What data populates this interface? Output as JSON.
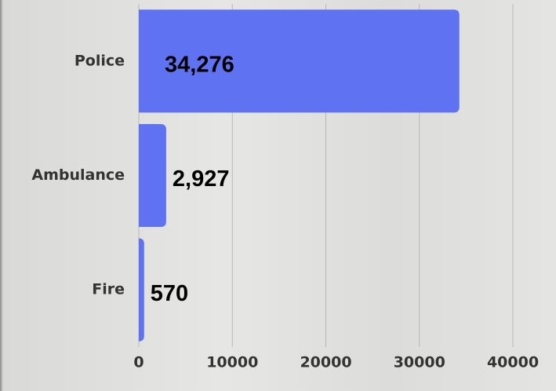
{
  "chart_data": {
    "type": "bar",
    "orientation": "horizontal",
    "categories": [
      "Police",
      "Ambulance",
      "Fire"
    ],
    "values": [
      34276,
      2927,
      570
    ],
    "value_labels": [
      "34,276",
      "2,927",
      "570"
    ],
    "color": "#5f73f2",
    "xlim": [
      0,
      40000
    ],
    "xticks": [
      0,
      10000,
      20000,
      30000,
      40000
    ],
    "grid": true
  }
}
